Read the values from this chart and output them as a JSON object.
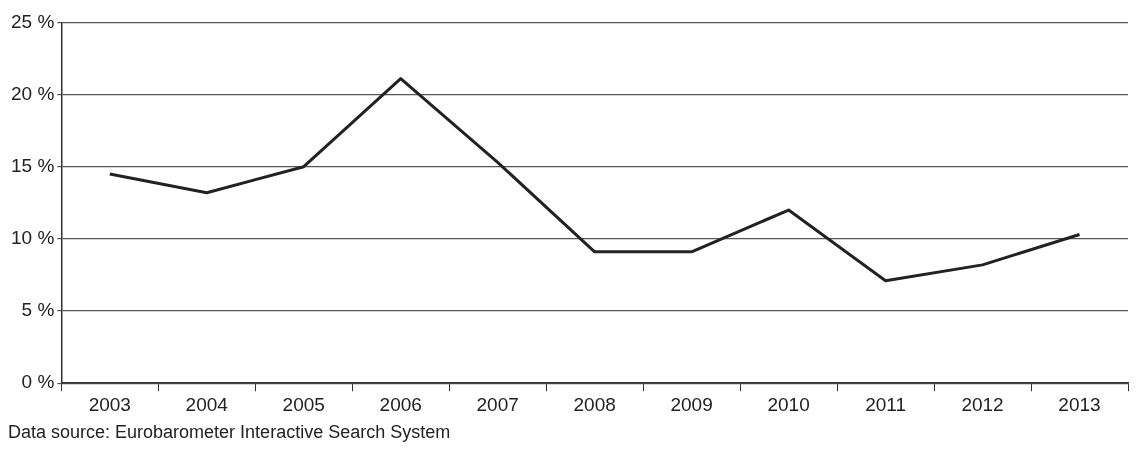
{
  "chart_data": {
    "type": "line",
    "categories": [
      "2003",
      "2004",
      "2005",
      "2006",
      "2007",
      "2008",
      "2009",
      "2010",
      "2011",
      "2012",
      "2013"
    ],
    "series": [
      {
        "color": "#222222",
        "values": [
          14.5,
          13.2,
          15.0,
          21.1,
          15.3,
          9.1,
          9.1,
          12.0,
          7.1,
          8.2,
          10.3
        ]
      }
    ],
    "ylim": [
      0,
      25
    ],
    "yticks": [
      {
        "value": 0,
        "label": "0 %"
      },
      {
        "value": 5,
        "label": "5 %"
      },
      {
        "value": 10,
        "label": "10 %"
      },
      {
        "value": 15,
        "label": "15 %"
      },
      {
        "value": 20,
        "label": "20 %"
      },
      {
        "value": 25,
        "label": "25 %"
      }
    ],
    "grid": "y",
    "legend": false,
    "marker": "none",
    "line_style": "solid",
    "annotations": [
      "Data source: Eurobarometer Interactive Search System"
    ]
  }
}
